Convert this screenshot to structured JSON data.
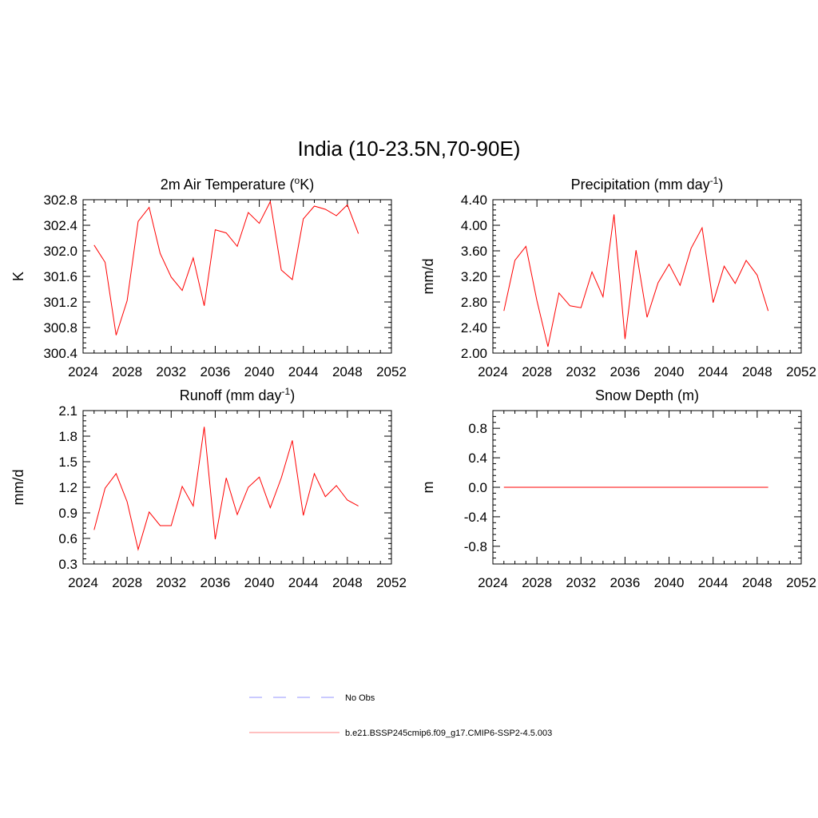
{
  "title": "India (10-23.5N,70-90E)",
  "chart_data": [
    {
      "type": "line",
      "title_main": "2m Air Temperature (",
      "title_sup": "o",
      "title_post": "K)",
      "ylabel": "K",
      "xlim": [
        2024,
        2052
      ],
      "ylim": [
        300.4,
        302.8
      ],
      "x_ticks": [
        2024,
        2028,
        2032,
        2036,
        2040,
        2044,
        2048,
        2052
      ],
      "y_ticks": [
        "300.4",
        "300.8",
        "301.2",
        "301.6",
        "302.0",
        "302.4",
        "302.8"
      ],
      "x": [
        2025,
        2026,
        2027,
        2028,
        2029,
        2030,
        2031,
        2032,
        2033,
        2034,
        2035,
        2036,
        2037,
        2038,
        2039,
        2040,
        2041,
        2042,
        2043,
        2044,
        2045,
        2046,
        2047,
        2048,
        2049
      ],
      "series": [
        {
          "values": [
            302.09,
            301.82,
            300.68,
            301.22,
            302.46,
            302.68,
            301.96,
            301.59,
            301.38,
            301.89,
            301.14,
            302.33,
            302.28,
            302.07,
            302.6,
            302.43,
            302.77,
            301.7,
            301.55,
            302.5,
            302.7,
            302.65,
            302.55,
            302.72,
            302.27
          ]
        }
      ]
    },
    {
      "type": "line",
      "title_main": "Precipitation (mm day",
      "title_sup": "-1",
      "title_post": ")",
      "ylabel": "mm/d",
      "xlim": [
        2024,
        2052
      ],
      "ylim": [
        2.0,
        4.4
      ],
      "x_ticks": [
        2024,
        2028,
        2032,
        2036,
        2040,
        2044,
        2048,
        2052
      ],
      "y_ticks": [
        "2.00",
        "2.40",
        "2.80",
        "3.20",
        "3.60",
        "4.00",
        "4.40"
      ],
      "x": [
        2025,
        2026,
        2027,
        2028,
        2029,
        2030,
        2031,
        2032,
        2033,
        2034,
        2035,
        2036,
        2037,
        2038,
        2039,
        2040,
        2041,
        2042,
        2043,
        2044,
        2045,
        2046,
        2047,
        2048,
        2049
      ],
      "series": [
        {
          "values": [
            2.66,
            3.45,
            3.67,
            2.82,
            2.1,
            2.94,
            2.74,
            2.71,
            3.27,
            2.88,
            4.17,
            2.22,
            3.61,
            2.56,
            3.1,
            3.39,
            3.06,
            3.64,
            3.96,
            2.79,
            3.36,
            3.09,
            3.45,
            3.22,
            2.66
          ]
        }
      ]
    },
    {
      "type": "line",
      "title_main": "Runoff (mm day",
      "title_sup": "-1",
      "title_post": ")",
      "ylabel": "mm/d",
      "xlim": [
        2024,
        2052
      ],
      "ylim": [
        0.3,
        2.1
      ],
      "x_ticks": [
        2024,
        2028,
        2032,
        2036,
        2040,
        2044,
        2048,
        2052
      ],
      "y_ticks": [
        "0.3",
        "0.6",
        "0.9",
        "1.2",
        "1.5",
        "1.8",
        "2.1"
      ],
      "x": [
        2025,
        2026,
        2027,
        2028,
        2029,
        2030,
        2031,
        2032,
        2033,
        2034,
        2035,
        2036,
        2037,
        2038,
        2039,
        2040,
        2041,
        2042,
        2043,
        2044,
        2045,
        2046,
        2047,
        2048,
        2049
      ],
      "series": [
        {
          "values": [
            0.7,
            1.19,
            1.36,
            1.03,
            0.47,
            0.91,
            0.75,
            0.75,
            1.21,
            0.98,
            1.91,
            0.59,
            1.31,
            0.88,
            1.2,
            1.32,
            0.96,
            1.31,
            1.75,
            0.87,
            1.36,
            1.09,
            1.22,
            1.05,
            0.98
          ]
        }
      ]
    },
    {
      "type": "line",
      "title_main": "Snow Depth (m)",
      "title_sup": "",
      "title_post": "",
      "ylabel": "m",
      "xlim": [
        2024,
        2052
      ],
      "ylim": [
        -1.04,
        1.04
      ],
      "x_ticks": [
        2024,
        2028,
        2032,
        2036,
        2040,
        2044,
        2048,
        2052
      ],
      "y_ticks": [
        "-0.8",
        "-0.4",
        "0.0",
        "0.4",
        "0.8"
      ],
      "y_tick_values": [
        -0.8,
        -0.4,
        0.0,
        0.4,
        0.8
      ],
      "x": [
        2025,
        2026,
        2027,
        2028,
        2029,
        2030,
        2031,
        2032,
        2033,
        2034,
        2035,
        2036,
        2037,
        2038,
        2039,
        2040,
        2041,
        2042,
        2043,
        2044,
        2045,
        2046,
        2047,
        2048,
        2049
      ],
      "series": [
        {
          "values": [
            0,
            0,
            0,
            0,
            0,
            0,
            0,
            0,
            0,
            0,
            0,
            0,
            0,
            0,
            0,
            0,
            0,
            0,
            0,
            0,
            0,
            0,
            0,
            0,
            0
          ]
        }
      ]
    }
  ],
  "legend": [
    {
      "label": "No Obs",
      "color": "#aaaaff",
      "dash": "dashed"
    },
    {
      "label": "b.e21.BSSP245cmip6.f09_g17.CMIP6-SSP2-4.5.003",
      "color": "#ff9a9a",
      "dash": "solid"
    }
  ],
  "line_color": "#ff0000"
}
